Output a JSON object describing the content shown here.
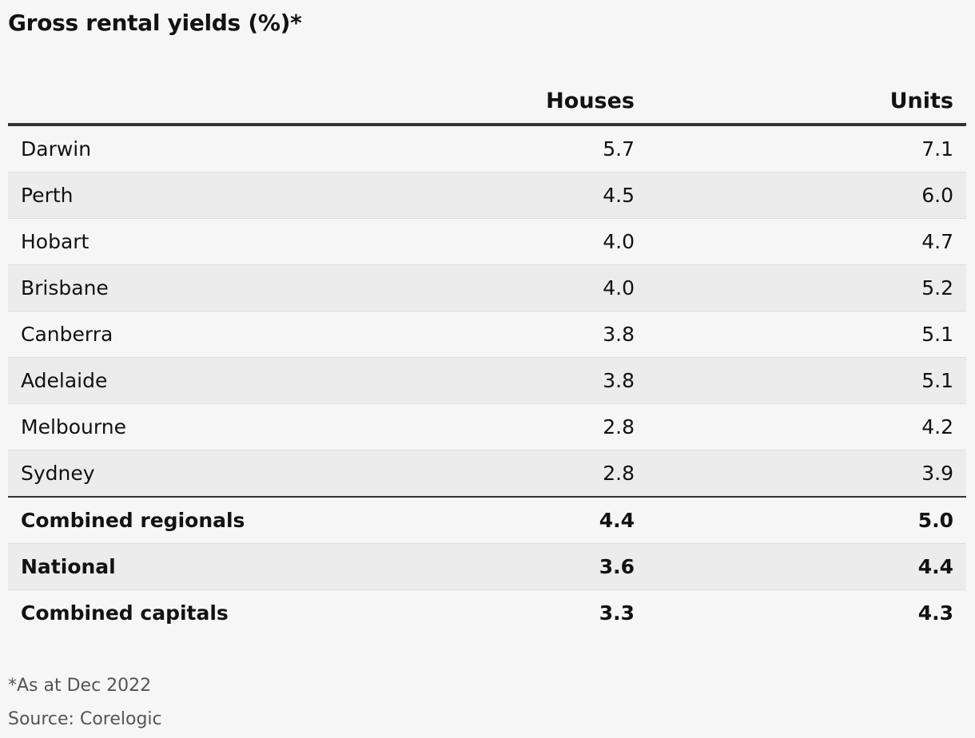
{
  "chart_data": {
    "type": "table",
    "title": "Gross rental yields (%)*",
    "columns": [
      "",
      "Houses",
      "Units"
    ],
    "rows": [
      {
        "name": "Darwin",
        "houses": "5.7",
        "units": "7.1"
      },
      {
        "name": "Perth",
        "houses": "4.5",
        "units": "6.0"
      },
      {
        "name": "Hobart",
        "houses": "4.0",
        "units": "4.7"
      },
      {
        "name": "Brisbane",
        "houses": "4.0",
        "units": "5.2"
      },
      {
        "name": "Canberra",
        "houses": "3.8",
        "units": "5.1"
      },
      {
        "name": "Adelaide",
        "houses": "3.8",
        "units": "5.1"
      },
      {
        "name": "Melbourne",
        "houses": "2.8",
        "units": "4.2"
      },
      {
        "name": "Sydney",
        "houses": "2.8",
        "units": "3.9"
      }
    ],
    "summary_rows": [
      {
        "name": "Combined regionals",
        "houses": "4.4",
        "units": "5.0"
      },
      {
        "name": "National",
        "houses": "3.6",
        "units": "4.4"
      },
      {
        "name": "Combined capitals",
        "houses": "3.3",
        "units": "4.3"
      }
    ],
    "footnote": "*As at Dec 2022",
    "source": "Source: Corelogic"
  }
}
